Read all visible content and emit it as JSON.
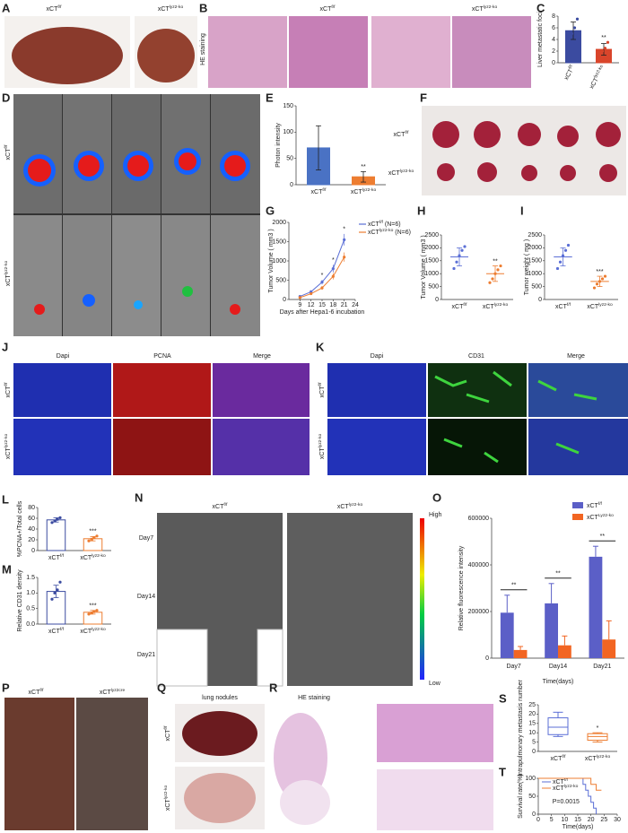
{
  "panel_letters": [
    "A",
    "B",
    "C",
    "D",
    "E",
    "F",
    "G",
    "H",
    "I",
    "J",
    "K",
    "L",
    "M",
    "N",
    "O",
    "P",
    "Q",
    "R",
    "S",
    "T"
  ],
  "A": {
    "labels": [
      {
        "base": "xCT",
        "sup": "f/f"
      },
      {
        "base": "xCT",
        "sup": "lyz2-ko"
      }
    ]
  },
  "B": {
    "stain": "HE staining",
    "labels": [
      {
        "base": "xCT",
        "sup": "f/f"
      },
      {
        "base": "xCT",
        "sup": "lyz2-ko"
      }
    ]
  },
  "D": {
    "rows": [
      {
        "base": "xCT",
        "sup": "f/f"
      },
      {
        "base": "xCT",
        "sup": "lyz2-ko"
      }
    ]
  },
  "F": {
    "rows": [
      {
        "base": "xCT",
        "sup": "f/f"
      },
      {
        "base": "xCT",
        "sup": "lyz2-ko"
      }
    ]
  },
  "J": {
    "channels": [
      "Dapi",
      "PCNA",
      "Merge"
    ],
    "rows": [
      {
        "base": "xCT",
        "sup": "f/f"
      },
      {
        "base": "xCT",
        "sup": "lyz2-ko"
      }
    ]
  },
  "K": {
    "channels": [
      "Dapi",
      "CD31",
      "Merge"
    ],
    "rows": [
      {
        "base": "xCT",
        "sup": "f/f"
      },
      {
        "base": "xCT",
        "sup": "lyz2-ko"
      }
    ]
  },
  "N": {
    "labels": [
      {
        "base": "xCT",
        "sup": "f/f"
      },
      {
        "base": "xCT",
        "sup": "lyz2-ko"
      }
    ],
    "days": [
      "Day7",
      "Day14",
      "Day21"
    ],
    "scale_high": "High",
    "scale_low": "Low"
  },
  "P": {
    "labels": [
      {
        "base": "xCT",
        "sup": "f/f"
      },
      {
        "base": "xCT",
        "sup": "lyz2cre"
      }
    ]
  },
  "Q": {
    "title": "lung nodules",
    "rows": [
      {
        "base": "xCT",
        "sup": "f/f"
      },
      {
        "base": "xCT",
        "sup": "lyz2-ko"
      }
    ]
  },
  "R": {
    "title": "HE staining"
  },
  "charts": [
    {
      "type": "bar",
      "ylabel": "Liver metastatic foci",
      "categories": [
        {
          "base": "xCT",
          "sup": "f/f"
        },
        {
          "base": "xCT",
          "sup": "lyz2-ko"
        }
      ],
      "values": [
        5.5,
        2.3
      ],
      "errors": [
        1.5,
        1.0
      ],
      "points": [
        [
          4.2,
          5,
          6,
          7.5
        ],
        [
          1,
          2,
          2.5,
          3.5
        ]
      ],
      "colors": [
        "#3b4ba0",
        "#d9452b"
      ],
      "filled": true,
      "ylim": [
        0,
        8
      ],
      "yticks": [
        0,
        2,
        4,
        6,
        8
      ],
      "annotations": [
        "**"
      ]
    },
    {
      "type": "bar",
      "ylabel": "Photon intensity",
      "categories": [
        {
          "base": "xCT",
          "sup": "f/f"
        },
        {
          "base": "xCT",
          "sup": "lyz2-ko"
        }
      ],
      "values": [
        70,
        15
      ],
      "errors": [
        42,
        10
      ],
      "colors": [
        "#4a72c4",
        "#ed7d31"
      ],
      "filled": true,
      "ylim": [
        0,
        150
      ],
      "yticks": [
        0,
        50,
        100,
        150
      ],
      "annotations": [
        "**"
      ]
    },
    {
      "type": "line",
      "ylabel": "Tumor Volume ( mm3 )",
      "xlabel": "Days after Hepa1-6 incubation",
      "x": [
        9,
        12,
        15,
        18,
        21
      ],
      "xlim": [
        6,
        24
      ],
      "xticks": [
        9,
        12,
        15,
        18,
        21,
        24
      ],
      "ylim": [
        0,
        2000
      ],
      "yticks": [
        0,
        500,
        1000,
        1500,
        2000
      ],
      "series": [
        {
          "name": {
            "base": "xCT",
            "sup": "f/f",
            "suffix": " (N=6)"
          },
          "color": "#5b6fd6",
          "values": [
            80,
            200,
            450,
            800,
            1550
          ],
          "errors": [
            20,
            40,
            60,
            100,
            150
          ]
        },
        {
          "name": {
            "base": "xCT",
            "sup": "lyz2-ko",
            "suffix": " (N=6)"
          },
          "color": "#ed7d31",
          "values": [
            50,
            150,
            300,
            600,
            1100
          ],
          "errors": [
            15,
            30,
            50,
            80,
            120
          ]
        }
      ],
      "annotations": [
        {
          "x": 15,
          "text": "*"
        },
        {
          "x": 18,
          "text": "*"
        },
        {
          "x": 21,
          "text": "*"
        }
      ]
    },
    {
      "type": "dot",
      "ylabel": "Tumor Volume ( mm3 )",
      "categories": [
        {
          "base": "xCT",
          "sup": "f/f"
        },
        {
          "base": "xCT",
          "sup": "lyz2-ko"
        }
      ],
      "values": [
        1650,
        1000
      ],
      "errors": [
        350,
        300
      ],
      "points": [
        [
          1200,
          1450,
          1700,
          1900,
          2050
        ],
        [
          650,
          800,
          1000,
          1150,
          1300
        ]
      ],
      "colors": [
        "#5b6fd6",
        "#ed7d31"
      ],
      "ylim": [
        0,
        2500
      ],
      "yticks": [
        0,
        500,
        1000,
        1500,
        2000,
        2500
      ],
      "annotations": [
        "**"
      ]
    },
    {
      "type": "dot",
      "ylabel": "Tumor weight ( mg )",
      "categories": [
        {
          "base": "xCT",
          "sup": "f/f"
        },
        {
          "base": "xCT",
          "sup": "lyz2-ko"
        }
      ],
      "values": [
        1650,
        700
      ],
      "errors": [
        350,
        200
      ],
      "points": [
        [
          1200,
          1450,
          1700,
          1900,
          2100
        ],
        [
          450,
          600,
          700,
          800,
          900
        ]
      ],
      "colors": [
        "#5b6fd6",
        "#ed7d31"
      ],
      "ylim": [
        0,
        2500
      ],
      "yticks": [
        0,
        500,
        1000,
        1500,
        2000,
        2500
      ],
      "annotations": [
        "***"
      ]
    },
    {
      "type": "bar",
      "ylabel": "%PCNA+/Total cells",
      "categories": [
        {
          "base": "xCT",
          "sup": "f/f"
        },
        {
          "base": "xCT",
          "sup": "lyz2-ko"
        }
      ],
      "values": [
        57,
        22
      ],
      "errors": [
        4,
        4
      ],
      "points": [
        [
          52,
          55,
          58,
          61
        ],
        [
          18,
          21,
          24,
          27
        ]
      ],
      "colors": [
        "#3b4ba0",
        "#ed7d31"
      ],
      "filled": false,
      "ylim": [
        0,
        80
      ],
      "yticks": [
        0,
        20,
        40,
        60,
        80
      ],
      "annotations": [
        "***"
      ]
    },
    {
      "type": "bar",
      "ylabel": "Relative CD31 density",
      "categories": [
        {
          "base": "xCT",
          "sup": "f/f"
        },
        {
          "base": "xCT",
          "sup": "lyz2-ko"
        }
      ],
      "values": [
        1.05,
        0.38
      ],
      "errors": [
        0.2,
        0.06
      ],
      "points": [
        [
          0.8,
          1.0,
          1.1,
          1.35
        ],
        [
          0.32,
          0.36,
          0.4,
          0.44
        ]
      ],
      "colors": [
        "#3b4ba0",
        "#ed7d31"
      ],
      "filled": false,
      "ylim": [
        0,
        1.5
      ],
      "yticks": [
        {
          "value": 0,
          "label": "0.0"
        },
        {
          "value": 0.5,
          "label": "0.5"
        },
        {
          "value": 1,
          "label": "1.0"
        },
        {
          "value": 1.5,
          "label": "1.5"
        }
      ],
      "annotations": [
        "***"
      ]
    },
    {
      "type": "grouped_bar",
      "ylabel": "Relative fluorescence intensity",
      "xlabel": "Time(days)",
      "categories": [
        "Day7",
        "Day14",
        "Day21"
      ],
      "ylim": [
        0,
        600000
      ],
      "yticks": [
        0,
        200000,
        400000,
        600000
      ],
      "series": [
        {
          "name": {
            "base": "xCT",
            "sup": "f/f"
          },
          "color": "#5b5fc7",
          "values": [
            195000,
            235000,
            435000
          ],
          "errors": [
            75000,
            85000,
            45000
          ]
        },
        {
          "name": {
            "base": "xCT",
            "sup": "Lyz2-ko"
          },
          "color": "#f26522",
          "values": [
            35000,
            55000,
            80000
          ],
          "errors": [
            15000,
            40000,
            80000
          ]
        }
      ],
      "annotations": [
        "**",
        "**",
        "**"
      ]
    },
    {
      "type": "box",
      "ylabel": "Intrapulmonary metastasis number",
      "categories": [
        {
          "base": "xCT",
          "sup": "f/f"
        },
        {
          "base": "xCT",
          "sup": "lyz2-ko"
        }
      ],
      "colors": [
        "#5b6fd6",
        "#ed7d31"
      ],
      "min": [
        8,
        5
      ],
      "q1": [
        9,
        6
      ],
      "median": [
        13,
        8
      ],
      "q3": [
        18,
        9.5
      ],
      "max": [
        21,
        10
      ],
      "ylim": [
        0,
        25
      ],
      "yticks": [
        0,
        5,
        10,
        15,
        20,
        25
      ],
      "annotations": [
        "*"
      ]
    },
    {
      "type": "survival",
      "ylabel": "Survival rate(%)",
      "xlabel": "Time(days)",
      "xlim": [
        0,
        30
      ],
      "xticks": [
        0,
        5,
        10,
        15,
        20,
        25,
        30
      ],
      "ylim": [
        0,
        100
      ],
      "yticks": [
        0,
        50,
        100
      ],
      "series": [
        {
          "name": {
            "base": "xCT",
            "sup": "f/f"
          },
          "color": "#5b6fd6",
          "x": [
            0,
            17,
            18,
            19,
            20,
            21,
            22
          ],
          "values": [
            100,
            83,
            67,
            50,
            33,
            17,
            0
          ]
        },
        {
          "name": {
            "base": "xCT",
            "sup": "lyz2-ko"
          },
          "color": "#ed7d31",
          "x": [
            0,
            20,
            22,
            24
          ],
          "values": [
            100,
            83,
            67,
            67
          ]
        }
      ],
      "annotations": [
        "P=0.0015"
      ]
    }
  ]
}
